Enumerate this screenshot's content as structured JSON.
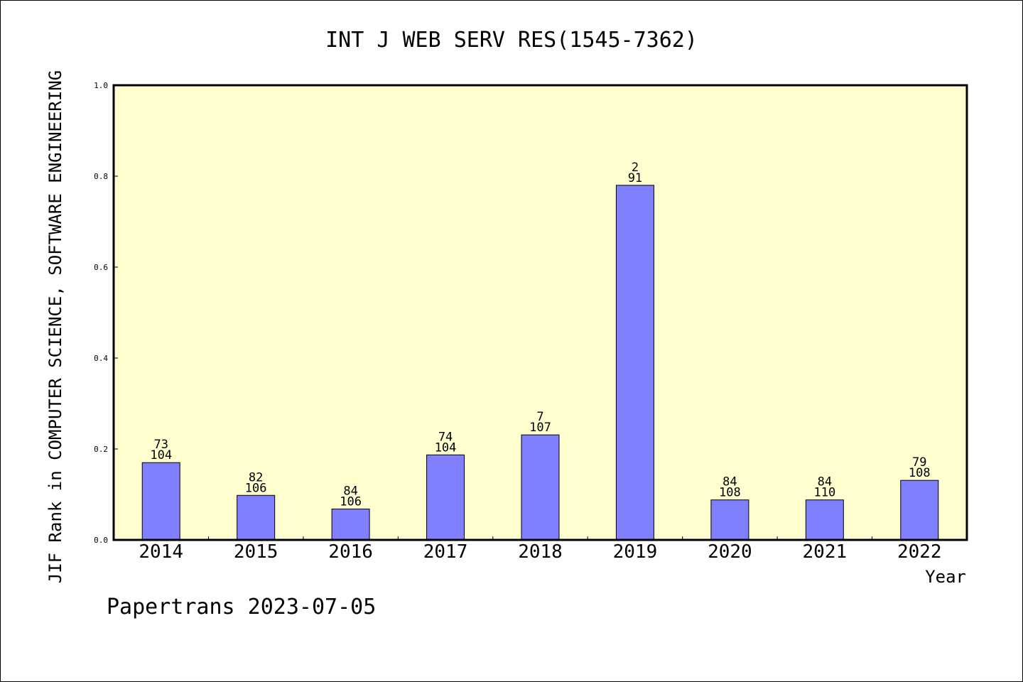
{
  "chart_data": {
    "type": "bar",
    "title": "INT J WEB SERV RES(1545-7362)",
    "xlabel": "Year",
    "ylabel": "JIF Rank in COMPUTER SCIENCE, SOFTWARE ENGINEERING",
    "ylim": [
      0,
      1.0
    ],
    "yticks": [
      "0.0",
      "0.2",
      "0.4",
      "0.6",
      "0.8",
      "1.0"
    ],
    "grid": false,
    "categories": [
      "2014",
      "2015",
      "2016",
      "2017",
      "2018",
      "2019",
      "2020",
      "2021",
      "2022"
    ],
    "values": [
      0.17,
      0.098,
      0.068,
      0.187,
      0.231,
      0.78,
      0.088,
      0.088,
      0.131
    ],
    "rank_labels": [
      "73",
      "82",
      "84",
      "74",
      "7",
      "2",
      "84",
      "84",
      "79"
    ],
    "total_labels": [
      "104",
      "106",
      "106",
      "104",
      "107",
      "91",
      "108",
      "110",
      "108"
    ],
    "colors": {
      "bar": "#8080ff",
      "plot_bg": "#ffffd0",
      "axis": "#000000"
    }
  },
  "footer": {
    "credit": "Papertrans 2023-07-05"
  }
}
